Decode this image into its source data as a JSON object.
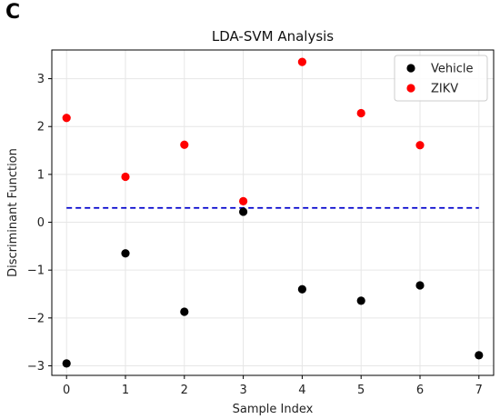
{
  "panel_letter": "C",
  "chart_data": {
    "type": "scatter",
    "title": "LDA-SVM Analysis",
    "xlabel": "Sample Index",
    "ylabel": "Discriminant Function",
    "xlim": [
      -0.25,
      7.25
    ],
    "ylim": [
      -3.2,
      3.6
    ],
    "xticks": [
      0,
      1,
      2,
      3,
      4,
      5,
      6,
      7
    ],
    "yticks": [
      -3,
      -2,
      -1,
      0,
      1,
      2,
      3
    ],
    "grid": true,
    "legend_position": "top-right",
    "series": [
      {
        "name": "Vehicle",
        "color": "#000000",
        "points": [
          [
            0,
            -2.95
          ],
          [
            1,
            -0.65
          ],
          [
            2,
            -1.87
          ],
          [
            3,
            0.22
          ],
          [
            4,
            -1.4
          ],
          [
            5,
            -1.64
          ],
          [
            6,
            -1.32
          ],
          [
            7,
            -2.78
          ]
        ]
      },
      {
        "name": "ZIKV",
        "color": "#ff0000",
        "points": [
          [
            0,
            2.18
          ],
          [
            1,
            0.95
          ],
          [
            2,
            1.62
          ],
          [
            3,
            0.44
          ],
          [
            4,
            3.35
          ],
          [
            5,
            2.28
          ],
          [
            6,
            1.61
          ]
        ]
      }
    ],
    "threshold_line": {
      "y": 0.3,
      "x_range": [
        0,
        7
      ],
      "color": "#0000cc",
      "style": "dashed"
    }
  }
}
